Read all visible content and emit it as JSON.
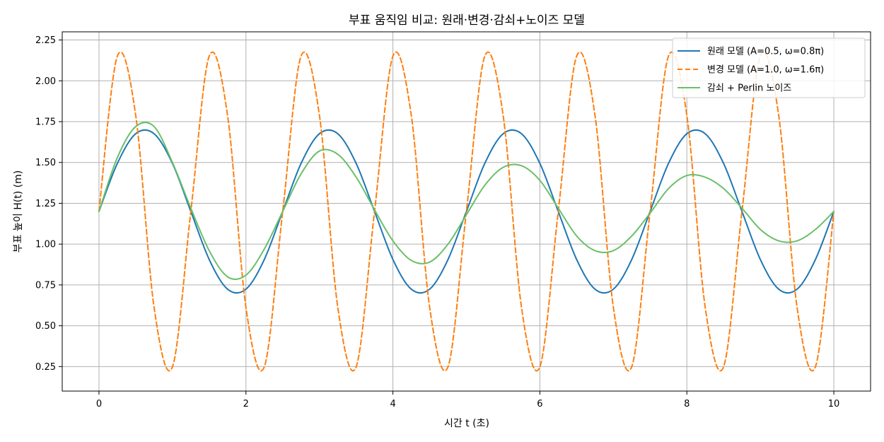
{
  "chart_data": {
    "type": "line",
    "title": "부표 움직임 비교: 원래·변경·감쇠+노이즈 모델",
    "xlabel": "시간 t (초)",
    "ylabel": "부표 높이 H(t) (m)",
    "xlim": [
      -0.5,
      10.5
    ],
    "ylim": [
      0.1,
      2.3
    ],
    "xticks": [
      0,
      2,
      4,
      6,
      8,
      10
    ],
    "yticks": [
      0.25,
      0.5,
      0.75,
      1.0,
      1.25,
      1.5,
      1.75,
      2.0,
      2.25
    ],
    "xtick_labels": [
      "0",
      "2",
      "4",
      "6",
      "8",
      "10"
    ],
    "ytick_labels": [
      "0.25",
      "0.50",
      "0.75",
      "1.00",
      "1.25",
      "1.50",
      "1.75",
      "2.00",
      "2.25"
    ],
    "grid": true,
    "legend_position": "top-right",
    "x": [
      0,
      0.25,
      0.5,
      0.75,
      1,
      1.25,
      1.5,
      1.75,
      2,
      2.25,
      2.5,
      2.75,
      3,
      3.25,
      3.5,
      3.75,
      4,
      4.25,
      4.5,
      4.75,
      5,
      5.25,
      5.5,
      5.75,
      6,
      6.25,
      6.5,
      6.75,
      7,
      7.25,
      7.5,
      7.75,
      8,
      8.25,
      8.5,
      8.75,
      9,
      9.25,
      9.5,
      9.75,
      10
    ],
    "series": [
      {
        "name": "원래 모델 (A=0.5, ω=0.8π)",
        "color": "#1f77b4",
        "dash": "solid",
        "values": [
          1.2,
          1.494,
          1.676,
          1.676,
          1.494,
          1.2,
          0.906,
          0.724,
          0.724,
          0.906,
          1.2,
          1.494,
          1.676,
          1.676,
          1.494,
          1.2,
          0.906,
          0.724,
          0.724,
          0.906,
          1.2,
          1.494,
          1.676,
          1.676,
          1.494,
          1.2,
          0.906,
          0.724,
          0.724,
          0.906,
          1.2,
          1.494,
          1.676,
          1.676,
          1.494,
          1.2,
          0.906,
          0.724,
          0.724,
          0.906,
          1.2
        ]
      },
      {
        "name": "변경 모델 (A=1.0, ω=1.6π)",
        "color": "#ff7f0e",
        "dash": "dashed",
        "values": [
          1.2,
          2.151,
          1.788,
          0.612,
          0.249,
          1.2,
          2.151,
          1.788,
          0.612,
          0.249,
          1.2,
          2.151,
          1.788,
          0.612,
          0.249,
          1.2,
          2.151,
          1.788,
          0.612,
          0.249,
          1.2,
          2.151,
          1.788,
          0.612,
          0.249,
          1.2,
          2.151,
          1.788,
          0.612,
          0.249,
          1.2,
          2.151,
          1.788,
          0.612,
          0.249,
          1.2,
          2.151,
          1.788,
          0.612,
          0.249,
          1.2
        ]
      },
      {
        "name": "감쇠 + Perlin 노이즈",
        "color": "#6abf69",
        "dash": "solid",
        "values": [
          1.2,
          1.53,
          1.72,
          1.72,
          1.5,
          1.22,
          0.96,
          0.8,
          0.81,
          0.97,
          1.2,
          1.43,
          1.57,
          1.55,
          1.41,
          1.21,
          1.02,
          0.9,
          0.89,
          1.0,
          1.18,
          1.36,
          1.47,
          1.48,
          1.39,
          1.22,
          1.05,
          0.96,
          0.96,
          1.05,
          1.19,
          1.34,
          1.42,
          1.41,
          1.34,
          1.22,
          1.09,
          1.02,
          1.02,
          1.09,
          1.2
        ]
      }
    ]
  }
}
